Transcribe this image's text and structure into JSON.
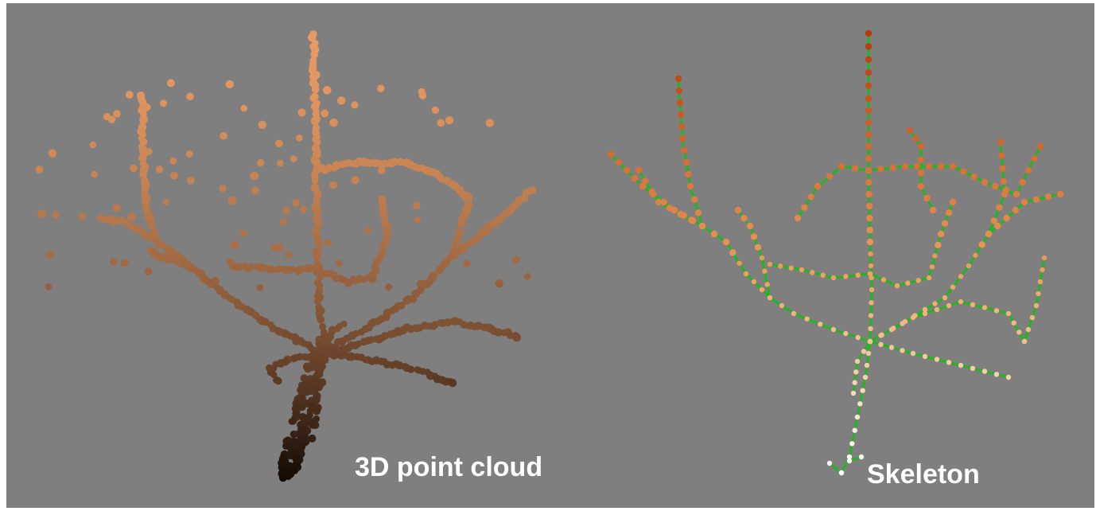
{
  "panels": {
    "left": {
      "caption": "3D point cloud"
    },
    "right": {
      "caption": "Skeleton"
    }
  },
  "colors": {
    "background": "#7f7f7f",
    "point_top": "#e99a62",
    "point_bottom": "#140a05",
    "skeleton_edge": "#22b522",
    "skeleton_node_top": "#b8380a",
    "skeleton_node_mid": "#f0a060",
    "skeleton_node_bottom": "#ffffff",
    "caption_text": "#ffffff"
  }
}
